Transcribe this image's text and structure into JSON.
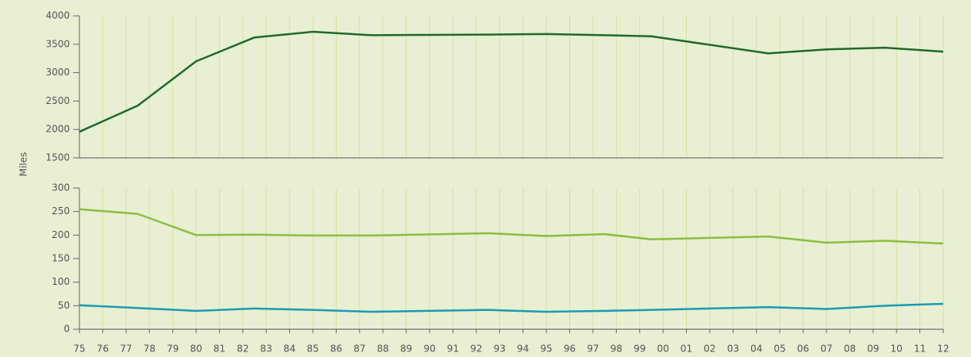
{
  "chart_data": {
    "type": "line",
    "ylabel": "Miles",
    "grid": true,
    "x": [
      1975,
      1977.5,
      1980,
      1982.5,
      1985,
      1987.5,
      1992.5,
      1995,
      1997.5,
      1999.5,
      2004.5,
      2007,
      2009.5,
      2012
    ],
    "xlim": [
      1975,
      2012
    ],
    "xticks": [
      {
        "value": 1975,
        "label": "75"
      },
      {
        "value": 1976,
        "label": "76"
      },
      {
        "value": 1977,
        "label": "77"
      },
      {
        "value": 1978,
        "label": "78"
      },
      {
        "value": 1979,
        "label": "79"
      },
      {
        "value": 1980,
        "label": "80"
      },
      {
        "value": 1981,
        "label": "81"
      },
      {
        "value": 1982,
        "label": "82"
      },
      {
        "value": 1983,
        "label": "83"
      },
      {
        "value": 1984,
        "label": "84"
      },
      {
        "value": 1985,
        "label": "85"
      },
      {
        "value": 1986,
        "label": "86"
      },
      {
        "value": 1987,
        "label": "87"
      },
      {
        "value": 1988,
        "label": "88"
      },
      {
        "value": 1989,
        "label": "89"
      },
      {
        "value": 1990,
        "label": "90"
      },
      {
        "value": 1991,
        "label": "91"
      },
      {
        "value": 1992,
        "label": "92"
      },
      {
        "value": 1993,
        "label": "93"
      },
      {
        "value": 1994,
        "label": "94"
      },
      {
        "value": 1995,
        "label": "95"
      },
      {
        "value": 1996,
        "label": "96"
      },
      {
        "value": 1997,
        "label": "97"
      },
      {
        "value": 1998,
        "label": "98"
      },
      {
        "value": 1999,
        "label": "99"
      },
      {
        "value": 2000,
        "label": "00"
      },
      {
        "value": 2001,
        "label": "01"
      },
      {
        "value": 2002,
        "label": "02"
      },
      {
        "value": 2003,
        "label": "03"
      },
      {
        "value": 2004,
        "label": "04"
      },
      {
        "value": 2005,
        "label": "05"
      },
      {
        "value": 2006,
        "label": "06"
      },
      {
        "value": 2007,
        "label": "07"
      },
      {
        "value": 2008,
        "label": "08"
      },
      {
        "value": 2009,
        "label": "09"
      },
      {
        "value": 2010,
        "label": "10"
      },
      {
        "value": 2011,
        "label": "11"
      },
      {
        "value": 2012,
        "label": "12"
      }
    ],
    "panels": [
      {
        "ylim": [
          1500,
          4000
        ],
        "yticks": [
          1500,
          2000,
          2500,
          3000,
          3500,
          4000
        ],
        "series": [
          {
            "color": "#1f6b2e",
            "values": [
              1960,
              2420,
              3200,
              3620,
              3720,
              3660,
              3670,
              3680,
              3660,
              3640,
              3340,
              3410,
              3440,
              3370
            ]
          }
        ]
      },
      {
        "ylim": [
          0,
          300
        ],
        "yticks": [
          0,
          50,
          100,
          150,
          200,
          250,
          300
        ],
        "series": [
          {
            "color": "#8cbf3f",
            "values": [
              255,
              245,
              200,
              201,
              199,
              199,
              204,
              198,
              202,
              191,
              197,
              184,
              188,
              182
            ]
          },
          {
            "color": "#1b9bb5",
            "values": [
              51,
              45,
              39,
              44,
              41,
              37,
              41,
              37,
              39,
              41,
              47,
              43,
              50,
              54
            ]
          }
        ]
      }
    ]
  }
}
